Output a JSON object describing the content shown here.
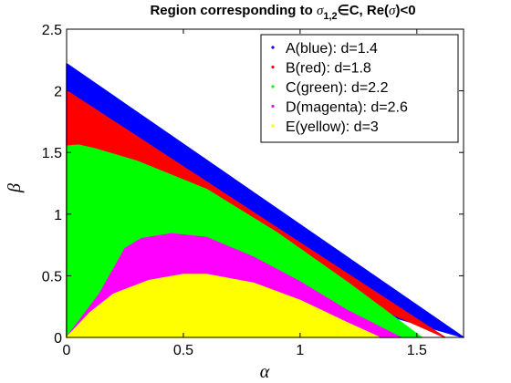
{
  "chart_data": {
    "type": "area",
    "title_parts": {
      "prefix": "Region corresponding to ",
      "sigma": "σ",
      "subscript": "1,2",
      "suffix1": "∈C, Re(",
      "suffix2": ")<0"
    },
    "xlabel": "α",
    "ylabel": "β",
    "xlim": [
      0,
      1.7
    ],
    "ylim": [
      0,
      2.5
    ],
    "xticks": [
      0,
      0.5,
      1,
      1.5
    ],
    "xtick_labels": [
      "0",
      "0.5",
      "1",
      "1.5"
    ],
    "yticks": [
      0,
      0.5,
      1,
      1.5,
      2,
      2.5
    ],
    "ytick_labels": [
      "0",
      "0.5",
      "1",
      "1.5",
      "2",
      "2.5"
    ],
    "legend_position": "top-right",
    "series": [
      {
        "name": "A(blue): d=1.4",
        "color": "#0000ff",
        "upper": [
          [
            0,
            2.22
          ],
          [
            1.7,
            0
          ]
        ],
        "lower": [
          [
            0,
            0
          ],
          [
            0.01,
            0.06
          ],
          [
            0.03,
            0.16
          ],
          [
            0.045,
            0.3
          ],
          [
            0.05,
            0.45
          ],
          [
            0.045,
            0.6
          ],
          [
            0.025,
            0.8
          ],
          [
            0,
            0.93
          ]
        ]
      },
      {
        "name": "B(red): d=1.8",
        "color": "#ff0000",
        "upper": [
          [
            0,
            2.0
          ],
          [
            1.62,
            0
          ]
        ],
        "lower": [
          [
            0,
            0
          ],
          [
            0.03,
            0.15
          ],
          [
            0.08,
            0.3
          ],
          [
            0.12,
            0.5
          ],
          [
            0.13,
            0.7
          ],
          [
            0.1,
            0.95
          ],
          [
            0.05,
            1.18
          ],
          [
            0,
            1.36
          ]
        ]
      },
      {
        "name": "C(green): d=2.2",
        "color": "#00ff00",
        "upper": [
          [
            0,
            1.55
          ],
          [
            0.05,
            1.56
          ],
          [
            0.12,
            1.53
          ],
          [
            0.3,
            1.43
          ],
          [
            0.6,
            1.2
          ],
          [
            0.9,
            0.85
          ],
          [
            1.2,
            0.45
          ],
          [
            1.52,
            0
          ]
        ],
        "lower": [
          [
            0,
            0
          ],
          [
            0.06,
            0.15
          ],
          [
            0.14,
            0.35
          ],
          [
            0.2,
            0.55
          ],
          [
            0.25,
            0.72
          ],
          [
            0.32,
            0.8
          ],
          [
            0.45,
            0.84
          ],
          [
            0.6,
            0.81
          ],
          [
            0.8,
            0.65
          ],
          [
            1.0,
            0.45
          ],
          [
            1.2,
            0.22
          ],
          [
            1.43,
            0
          ]
        ]
      },
      {
        "name": "D(magenta): d=2.6",
        "color": "#ff00ff",
        "upper": [
          [
            0,
            0
          ],
          [
            0.06,
            0.15
          ],
          [
            0.14,
            0.35
          ],
          [
            0.2,
            0.55
          ],
          [
            0.25,
            0.72
          ],
          [
            0.32,
            0.8
          ],
          [
            0.45,
            0.84
          ],
          [
            0.6,
            0.81
          ],
          [
            0.8,
            0.65
          ],
          [
            1.0,
            0.45
          ],
          [
            1.2,
            0.22
          ],
          [
            1.43,
            0
          ]
        ],
        "lower": [
          [
            0,
            0
          ],
          [
            0.1,
            0.2
          ],
          [
            0.2,
            0.35
          ],
          [
            0.35,
            0.46
          ],
          [
            0.5,
            0.51
          ],
          [
            0.6,
            0.51
          ],
          [
            0.8,
            0.44
          ],
          [
            1.0,
            0.3
          ],
          [
            1.2,
            0.12
          ],
          [
            1.34,
            0
          ]
        ]
      },
      {
        "name": "E(yellow): d=3",
        "color": "#ffff00",
        "upper": [
          [
            0,
            0
          ],
          [
            0.1,
            0.2
          ],
          [
            0.2,
            0.35
          ],
          [
            0.35,
            0.46
          ],
          [
            0.5,
            0.51
          ],
          [
            0.6,
            0.51
          ],
          [
            0.8,
            0.44
          ],
          [
            1.0,
            0.3
          ],
          [
            1.2,
            0.12
          ],
          [
            1.34,
            0
          ]
        ],
        "lower": [
          [
            0,
            0
          ],
          [
            1.34,
            0
          ]
        ]
      }
    ]
  }
}
